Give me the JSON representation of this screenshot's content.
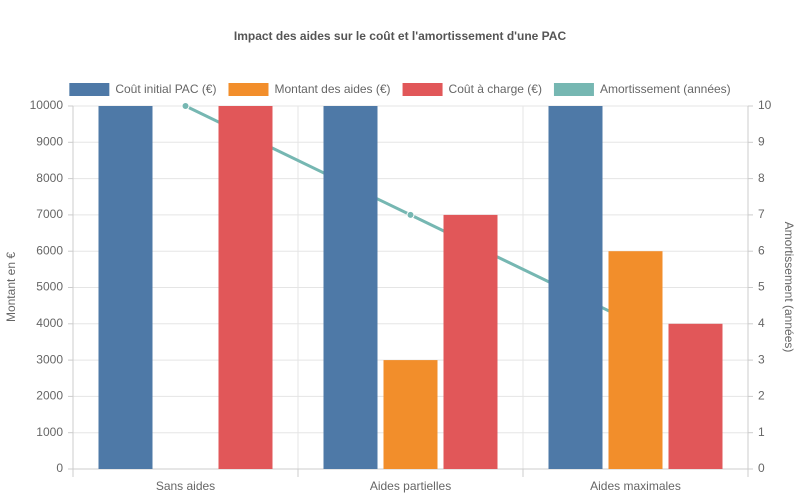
{
  "chart_data": {
    "type": "bar",
    "title": "Impact des aides sur le coût et l'amortissement d'une PAC",
    "categories": [
      "Sans aides",
      "Aides partielles",
      "Aides maximales"
    ],
    "series": [
      {
        "name": "Coût initial PAC (€)",
        "color": "#4e79a7",
        "values": [
          10000,
          10000,
          10000
        ]
      },
      {
        "name": "Montant des aides (€)",
        "color": "#f28e2b",
        "values": [
          0,
          3000,
          6000
        ]
      },
      {
        "name": "Coût à charge (€)",
        "color": "#e15759",
        "values": [
          10000,
          7000,
          4000
        ]
      },
      {
        "name": "Amortissement (années)",
        "color": "#76b7b2",
        "type": "line",
        "axis": "y2",
        "values": [
          10,
          7,
          4
        ]
      }
    ],
    "y_label": "Montant en €",
    "y2_label": "Amortissement (années)",
    "ylim": [
      0,
      10000
    ],
    "yticks": [
      0,
      1000,
      2000,
      3000,
      4000,
      5000,
      6000,
      7000,
      8000,
      9000,
      10000
    ],
    "y2lim": [
      0,
      10
    ],
    "y2ticks": [
      0,
      1,
      2,
      3,
      4,
      5,
      6,
      7,
      8,
      9,
      10
    ],
    "grid": true,
    "legend": "top"
  }
}
